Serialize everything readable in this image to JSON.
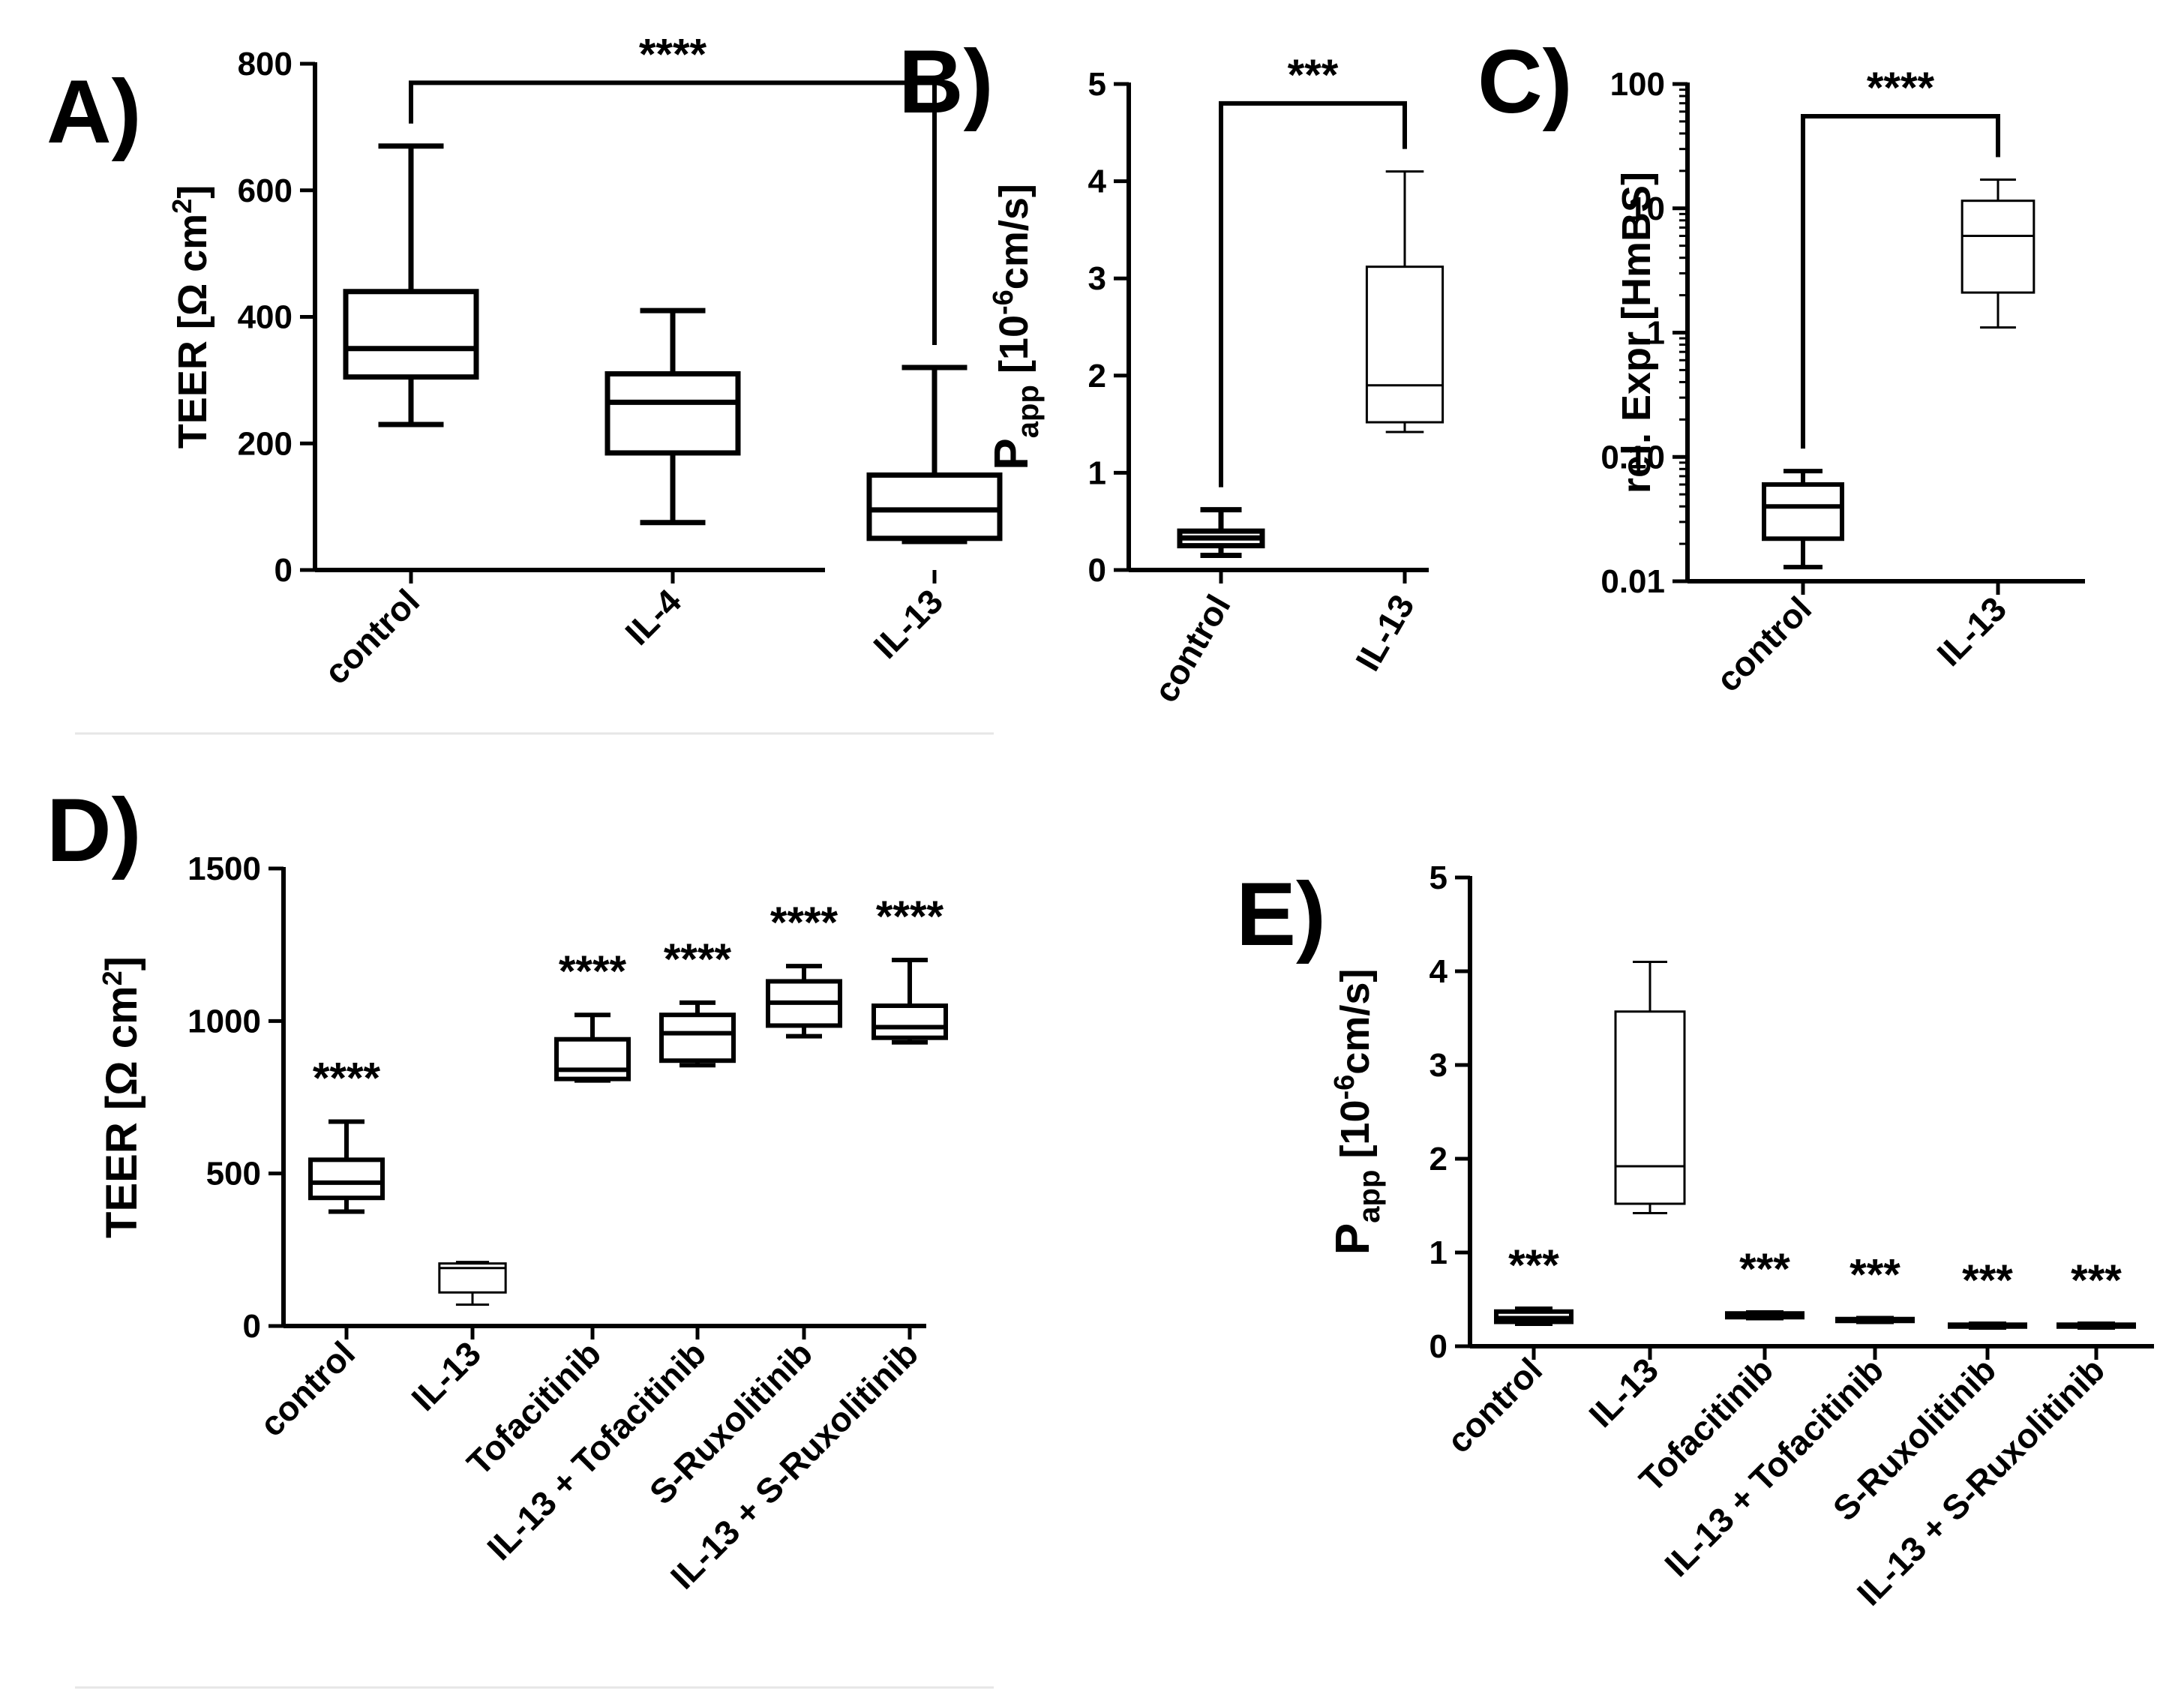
{
  "chart_data": [
    {
      "id": "A",
      "type": "boxplot",
      "panel_label": "A)",
      "ylabel": "TEER [Ω cm²]",
      "scale": "linear",
      "ylim": [
        0,
        800
      ],
      "yticks": [
        0,
        200,
        400,
        600,
        800
      ],
      "categories": [
        "control",
        "IL-4",
        "IL-13"
      ],
      "boxes": [
        {
          "min": 230,
          "q1": 305,
          "median": 350,
          "q3": 440,
          "max": 670,
          "stroke": "thick"
        },
        {
          "min": 75,
          "q1": 185,
          "median": 265,
          "q3": 310,
          "max": 410,
          "stroke": "thick"
        },
        {
          "min": 45,
          "q1": 50,
          "median": 95,
          "q3": 150,
          "max": 320,
          "stroke": "thick"
        }
      ],
      "brackets": [
        {
          "from": 0,
          "to": 2,
          "label": "****",
          "y": 770,
          "left_end": 670,
          "right_end": 320
        }
      ]
    },
    {
      "id": "B",
      "type": "boxplot",
      "panel_label": "B)",
      "ylabel": "P app [10-6cm/s]",
      "scale": "linear",
      "ylim": [
        0,
        5
      ],
      "yticks": [
        0,
        1,
        2,
        3,
        4,
        5
      ],
      "categories": [
        "control",
        "IL-13"
      ],
      "boxes": [
        {
          "min": 0.15,
          "q1": 0.25,
          "median": 0.33,
          "q3": 0.4,
          "max": 0.62,
          "stroke": "thick"
        },
        {
          "min": 1.42,
          "q1": 1.52,
          "median": 1.9,
          "q3": 3.12,
          "max": 4.1,
          "stroke": "thin"
        }
      ],
      "brackets": [
        {
          "from": 0,
          "to": 1,
          "label": "***",
          "y": 4.8,
          "left_end": 0.62,
          "right_end": 4.1
        }
      ]
    },
    {
      "id": "C",
      "type": "boxplot",
      "panel_label": "C)",
      "ylabel": "rel. Expr [HmBS]",
      "scale": "log",
      "ylim": [
        0.01,
        100
      ],
      "yticks": [
        0.01,
        0.1,
        1,
        10,
        100
      ],
      "ytick_labels": [
        "0.01",
        "0.10",
        "1",
        "10",
        "100"
      ],
      "categories": [
        "control",
        "IL-13"
      ],
      "boxes": [
        {
          "min": 0.013,
          "q1": 0.022,
          "median": 0.04,
          "q3": 0.06,
          "max": 0.077,
          "stroke": "thick"
        },
        {
          "min": 1.1,
          "q1": 2.1,
          "median": 6,
          "q3": 11.5,
          "max": 17,
          "stroke": "thin"
        }
      ],
      "brackets": [
        {
          "from": 0,
          "to": 1,
          "label": "****",
          "y": 55,
          "left_end": 0.077,
          "right_end": 17
        }
      ]
    },
    {
      "id": "D",
      "type": "boxplot",
      "panel_label": "D)",
      "ylabel": "TEER [Ω cm²]",
      "scale": "linear",
      "ylim": [
        0,
        1500
      ],
      "yticks": [
        0,
        500,
        1000,
        1500
      ],
      "categories": [
        "control",
        "IL-13",
        "Tofacitinib",
        "IL-13 + Tofacitinib",
        "S-Ruxolitinib",
        "IL-13 + S-Ruxolitinib"
      ],
      "boxes": [
        {
          "min": 375,
          "q1": 420,
          "median": 470,
          "q3": 545,
          "max": 670,
          "stroke": "thick",
          "star": "****"
        },
        {
          "min": 70,
          "q1": 110,
          "median": 190,
          "q3": 205,
          "max": 210,
          "stroke": "thin",
          "star": ""
        },
        {
          "min": 805,
          "q1": 810,
          "median": 840,
          "q3": 940,
          "max": 1020,
          "stroke": "thick",
          "star": "****"
        },
        {
          "min": 855,
          "q1": 870,
          "median": 960,
          "q3": 1020,
          "max": 1060,
          "stroke": "thick",
          "star": "****"
        },
        {
          "min": 950,
          "q1": 985,
          "median": 1060,
          "q3": 1130,
          "max": 1180,
          "stroke": "thick",
          "star": "****"
        },
        {
          "min": 930,
          "q1": 945,
          "median": 980,
          "q3": 1050,
          "max": 1200,
          "stroke": "thick",
          "star": "****"
        }
      ],
      "brackets": []
    },
    {
      "id": "E",
      "type": "boxplot",
      "panel_label": "E)",
      "ylabel": "P app [10-6cm/s]",
      "scale": "linear",
      "ylim": [
        0,
        5
      ],
      "yticks": [
        0,
        1,
        2,
        3,
        4,
        5
      ],
      "categories": [
        "control",
        "IL-13",
        "Tofacitinib",
        "IL-13 + Tofacitinib",
        "S-Ruxolitinib",
        "IL-13 + S-Ruxolitinib"
      ],
      "boxes": [
        {
          "min": 0.24,
          "q1": 0.26,
          "median": 0.3,
          "q3": 0.37,
          "max": 0.4,
          "stroke": "thick",
          "star": "***"
        },
        {
          "min": 1.42,
          "q1": 1.52,
          "median": 1.92,
          "q3": 3.57,
          "max": 4.1,
          "stroke": "thin",
          "star": ""
        },
        {
          "min": 0.3,
          "q1": 0.31,
          "median": 0.33,
          "q3": 0.35,
          "max": 0.36,
          "stroke": "thick",
          "star": "***"
        },
        {
          "min": 0.26,
          "q1": 0.27,
          "median": 0.28,
          "q3": 0.29,
          "max": 0.3,
          "stroke": "thick",
          "star": "***"
        },
        {
          "min": 0.2,
          "q1": 0.21,
          "median": 0.22,
          "q3": 0.23,
          "max": 0.24,
          "stroke": "thick",
          "star": "***"
        },
        {
          "min": 0.2,
          "q1": 0.21,
          "median": 0.22,
          "q3": 0.23,
          "max": 0.24,
          "stroke": "thick",
          "star": "***"
        }
      ],
      "brackets": []
    }
  ]
}
